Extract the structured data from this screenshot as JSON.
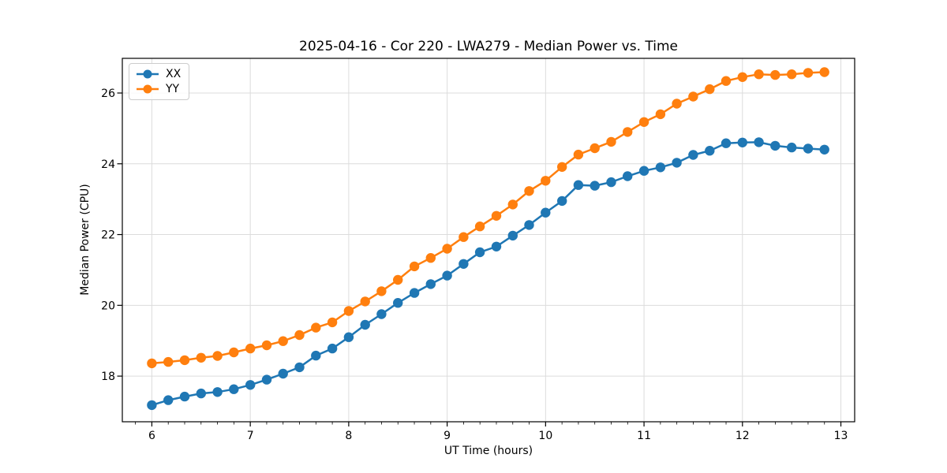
{
  "figure": {
    "background": "#ffffff"
  },
  "colors": {
    "grid": "#dcdcdc",
    "spine": "#000000",
    "text": "#000000",
    "legend_border": "#cccccc"
  },
  "chart_data": {
    "type": "line",
    "title": "2025-04-16 - Cor 220 - LWA279 - Median Power vs. Time",
    "xlabel": "UT Time (hours)",
    "ylabel": "Median Power (CPU)",
    "xlim": [
      5.7,
      13.14
    ],
    "ylim": [
      16.71,
      26.98
    ],
    "xticks": [
      6,
      7,
      8,
      9,
      10,
      11,
      12,
      13
    ],
    "yticks": [
      18,
      20,
      22,
      24,
      26
    ],
    "x_minor_per_unit": 6,
    "grid": true,
    "legend": {
      "position": "upper-left",
      "entries": [
        "XX",
        "YY"
      ]
    },
    "x": [
      6.0,
      6.167,
      6.333,
      6.5,
      6.667,
      6.833,
      7.0,
      7.167,
      7.333,
      7.5,
      7.667,
      7.833,
      8.0,
      8.167,
      8.333,
      8.5,
      8.667,
      8.833,
      9.0,
      9.167,
      9.333,
      9.5,
      9.667,
      9.833,
      10.0,
      10.167,
      10.333,
      10.5,
      10.667,
      10.833,
      11.0,
      11.167,
      11.333,
      11.5,
      11.667,
      11.833,
      12.0,
      12.167,
      12.333,
      12.5,
      12.667,
      12.833
    ],
    "series": [
      {
        "name": "XX",
        "color": "#1f77b4",
        "values": [
          17.18,
          17.32,
          17.42,
          17.51,
          17.55,
          17.63,
          17.75,
          17.9,
          18.07,
          18.25,
          18.58,
          18.78,
          19.1,
          19.45,
          19.75,
          20.07,
          20.35,
          20.6,
          20.84,
          21.17,
          21.5,
          21.66,
          21.97,
          22.27,
          22.62,
          22.95,
          23.4,
          23.38,
          23.48,
          23.65,
          23.8,
          23.9,
          24.03,
          24.25,
          24.37,
          24.58,
          24.6,
          24.61,
          24.51,
          24.46,
          24.43,
          24.4
        ]
      },
      {
        "name": "YY",
        "color": "#ff7f0e",
        "values": [
          18.36,
          18.4,
          18.45,
          18.52,
          18.57,
          18.67,
          18.78,
          18.87,
          18.99,
          19.16,
          19.37,
          19.52,
          19.84,
          20.11,
          20.4,
          20.72,
          21.1,
          21.34,
          21.6,
          21.93,
          22.23,
          22.53,
          22.85,
          23.23,
          23.52,
          23.91,
          24.26,
          24.44,
          24.62,
          24.9,
          25.18,
          25.4,
          25.7,
          25.9,
          26.11,
          26.34,
          26.45,
          26.53,
          26.51,
          26.53,
          26.57,
          26.59
        ]
      }
    ]
  }
}
